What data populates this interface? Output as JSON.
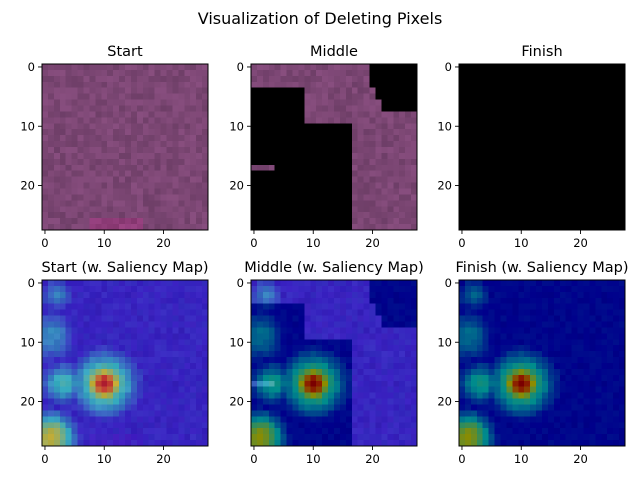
{
  "figure": {
    "title": "Visualization of Deleting Pixels"
  },
  "chart_data": [
    {
      "type": "heatmap",
      "title": "Start",
      "image_kind": "raw",
      "deletion_stage": "start",
      "grid_size": [
        28,
        28
      ],
      "xlim": [
        -0.5,
        27.5
      ],
      "ylim": [
        27.5,
        -0.5
      ],
      "x_ticks": [
        0,
        10,
        20
      ],
      "y_ticks": [
        0,
        10,
        20
      ],
      "base_color": "#7b4673"
    },
    {
      "type": "heatmap",
      "title": "Middle",
      "image_kind": "raw",
      "deletion_stage": "middle",
      "grid_size": [
        28,
        28
      ],
      "xlim": [
        -0.5,
        27.5
      ],
      "ylim": [
        27.5,
        -0.5
      ],
      "x_ticks": [
        0,
        10,
        20
      ],
      "y_ticks": [
        0,
        10,
        20
      ],
      "base_color": "#7b4673",
      "deleted_color": "#000000"
    },
    {
      "type": "heatmap",
      "title": "Finish",
      "image_kind": "raw",
      "deletion_stage": "finish",
      "grid_size": [
        28,
        28
      ],
      "xlim": [
        -0.5,
        27.5
      ],
      "ylim": [
        27.5,
        -0.5
      ],
      "x_ticks": [
        0,
        10,
        20
      ],
      "y_ticks": [
        0,
        10,
        20
      ],
      "deleted_color": "#000000"
    },
    {
      "type": "heatmap",
      "title": "Start (w. Saliency Map)",
      "image_kind": "saliency_overlay",
      "deletion_stage": "start",
      "grid_size": [
        28,
        28
      ],
      "xlim": [
        -0.5,
        27.5
      ],
      "ylim": [
        27.5,
        -0.5
      ],
      "x_ticks": [
        0,
        10,
        20
      ],
      "y_ticks": [
        0,
        10,
        20
      ],
      "colormap": "jet",
      "saliency_peak": [
        10,
        17
      ]
    },
    {
      "type": "heatmap",
      "title": "Middle (w. Saliency Map)",
      "image_kind": "saliency_overlay",
      "deletion_stage": "middle",
      "grid_size": [
        28,
        28
      ],
      "xlim": [
        -0.5,
        27.5
      ],
      "ylim": [
        27.5,
        -0.5
      ],
      "x_ticks": [
        0,
        10,
        20
      ],
      "y_ticks": [
        0,
        10,
        20
      ],
      "colormap": "jet",
      "saliency_peak": [
        10,
        17
      ]
    },
    {
      "type": "heatmap",
      "title": "Finish (w. Saliency Map)",
      "image_kind": "saliency_overlay",
      "deletion_stage": "finish",
      "grid_size": [
        28,
        28
      ],
      "xlim": [
        -0.5,
        27.5
      ],
      "ylim": [
        27.5,
        -0.5
      ],
      "x_ticks": [
        0,
        10,
        20
      ],
      "y_ticks": [
        0,
        10,
        20
      ],
      "colormap": "jet",
      "saliency_peak": [
        10,
        17
      ]
    }
  ]
}
